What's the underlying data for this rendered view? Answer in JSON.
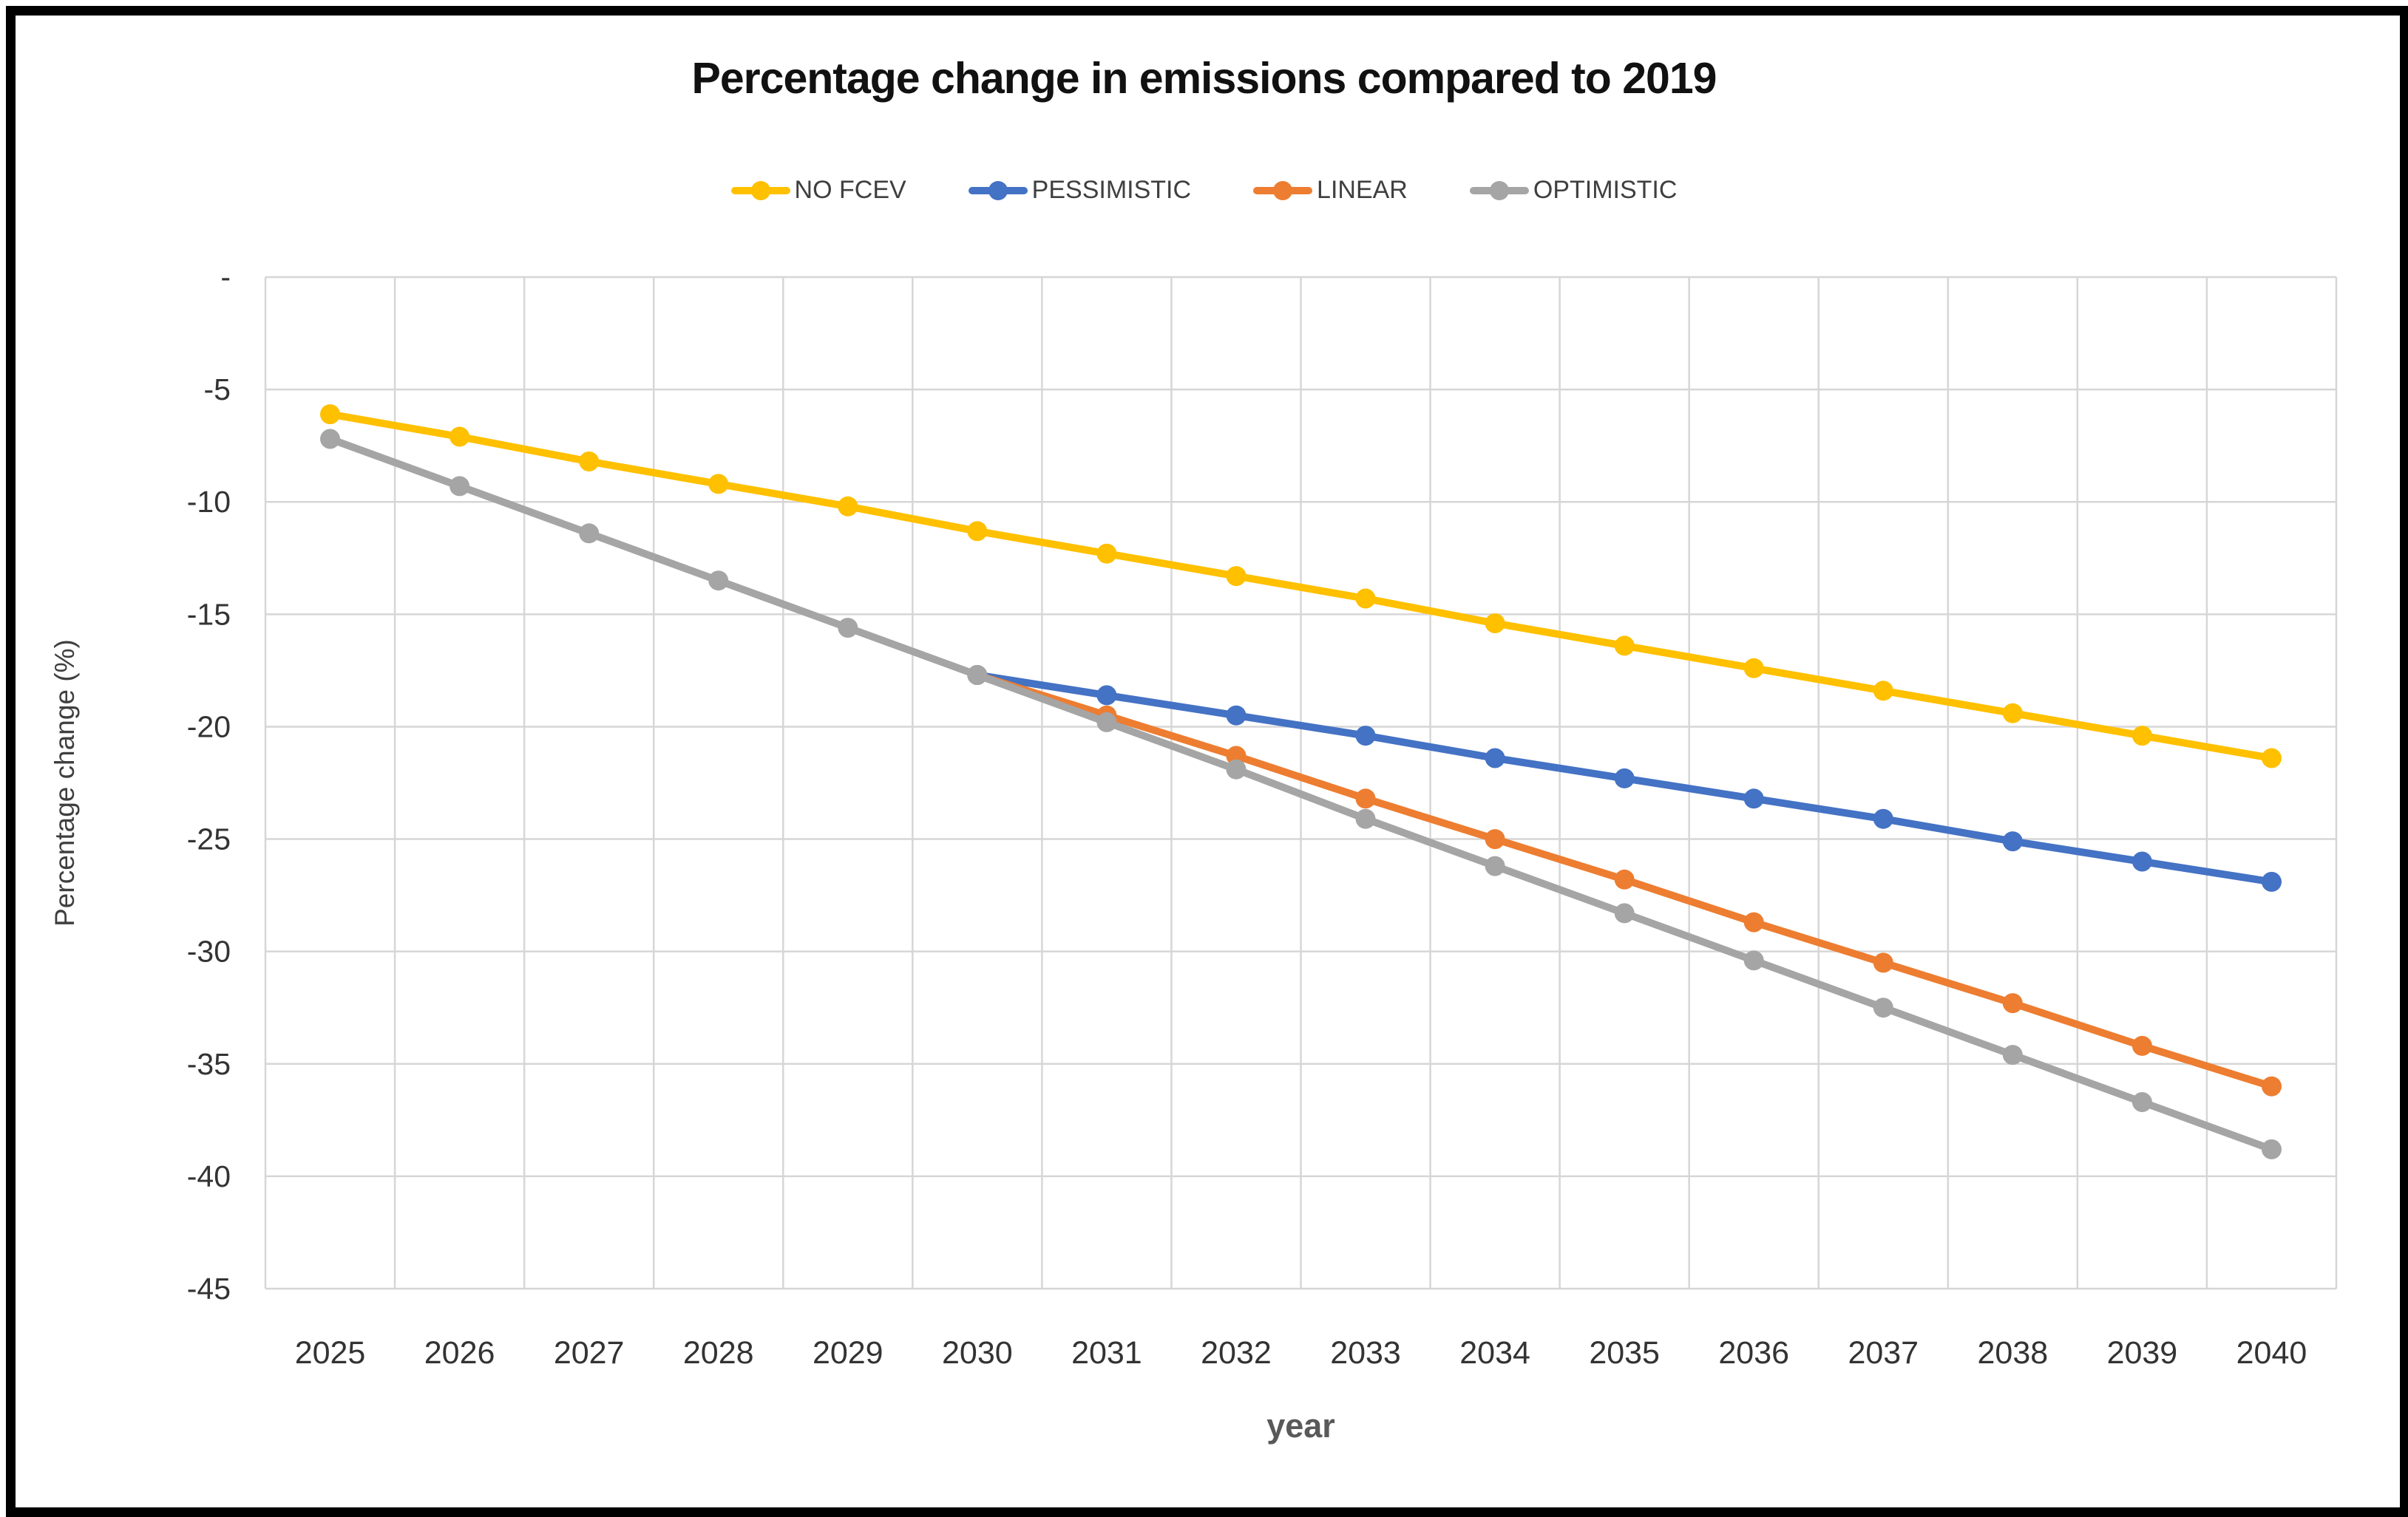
{
  "chart_data": {
    "type": "line",
    "title": "Percentage change in emissions compared to 2019",
    "xlabel": "year",
    "ylabel": "Percentage change (%)",
    "x": [
      2025,
      2026,
      2027,
      2028,
      2029,
      2030,
      2031,
      2032,
      2033,
      2034,
      2035,
      2036,
      2037,
      2038,
      2039,
      2040
    ],
    "series": [
      {
        "name": "NO FCEV",
        "color": "#FFC000",
        "values": [
          -6.1,
          -7.1,
          -8.2,
          -9.2,
          -10.2,
          -11.3,
          -12.3,
          -13.3,
          -14.3,
          -15.4,
          -16.4,
          -17.4,
          -18.4,
          -19.4,
          -20.4,
          -21.4
        ]
      },
      {
        "name": "PESSIMISTIC",
        "color": "#4472C4",
        "values": [
          null,
          null,
          null,
          null,
          null,
          -17.7,
          -18.6,
          -19.5,
          -20.4,
          -21.4,
          -22.3,
          -23.2,
          -24.1,
          -25.1,
          -26.0,
          -26.9
        ]
      },
      {
        "name": "LINEAR",
        "color": "#ED7D31",
        "values": [
          null,
          null,
          null,
          null,
          null,
          -17.7,
          -19.5,
          -21.3,
          -23.2,
          -25.0,
          -26.8,
          -28.7,
          -30.5,
          -32.3,
          -34.2,
          -36.0
        ]
      },
      {
        "name": "OPTIMISTIC",
        "color": "#A5A5A5",
        "values": [
          -7.2,
          -9.3,
          -11.4,
          -13.5,
          -15.6,
          -17.7,
          -19.8,
          -21.9,
          -24.1,
          -26.2,
          -28.3,
          -30.4,
          -32.5,
          -34.6,
          -36.7,
          -38.8
        ]
      }
    ],
    "ylim": [
      -45,
      0
    ],
    "ytick_step": 5,
    "ytick_labels": [
      "-",
      "-5",
      "-10",
      "-15",
      "-20",
      "-25",
      "-30",
      "-35",
      "-40",
      "-45"
    ],
    "grid": true,
    "gridline_color": "#D6D6D6",
    "legend_position": "top"
  }
}
